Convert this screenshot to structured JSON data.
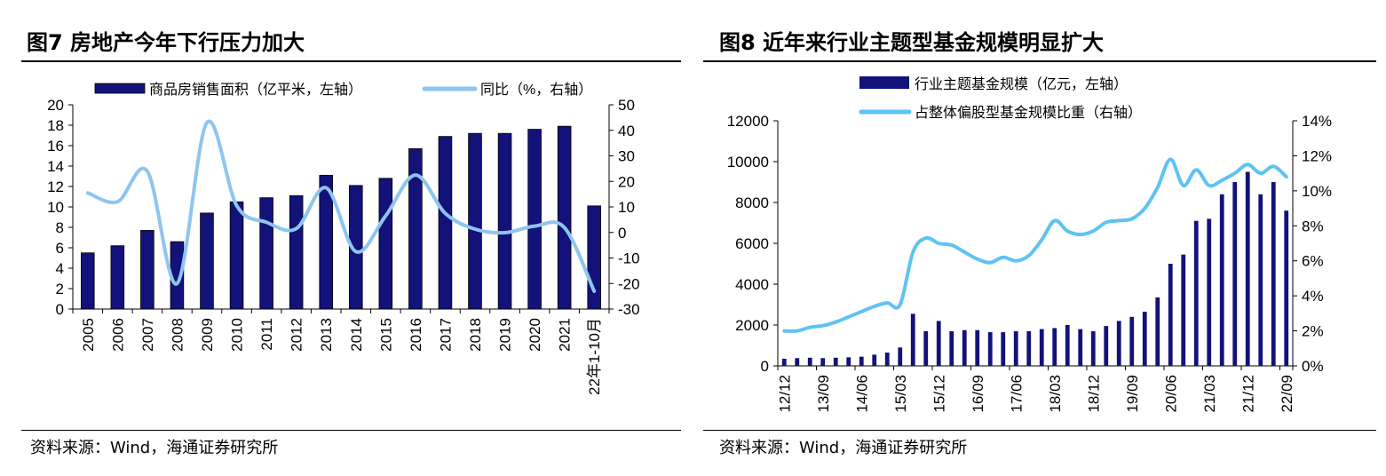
{
  "colors": {
    "bar": "#12127a",
    "line": "#8ec5f0",
    "line2": "#5ec3f2"
  },
  "figure7": {
    "title": "图7   房地产今年下行压力加大",
    "source": "资料来源：Wind，海通证券研究所"
  },
  "figure8": {
    "title": "图8   近年来行业主题型基金规模明显扩大",
    "source": "资料来源：Wind，海通证券研究所"
  },
  "chart_data": [
    {
      "type": "bar+line",
      "categories": [
        "2005",
        "2006",
        "2007",
        "2008",
        "2009",
        "2010",
        "2011",
        "2012",
        "2013",
        "2014",
        "2015",
        "2016",
        "2017",
        "2018",
        "2019",
        "2020",
        "2021",
        "22年1-10月"
      ],
      "series": [
        {
          "name": "商品房销售面积（亿平米，左轴）",
          "type": "bar",
          "axis": "left",
          "values": [
            5.5,
            6.2,
            7.7,
            6.6,
            9.4,
            10.5,
            10.9,
            11.1,
            13.1,
            12.1,
            12.8,
            15.7,
            16.9,
            17.2,
            17.2,
            17.6,
            17.9,
            10.1
          ]
        },
        {
          "name": "同比（%，右轴）",
          "type": "line",
          "axis": "right",
          "values": [
            15.5,
            12,
            24,
            -20,
            43,
            10.5,
            4,
            1.5,
            17.5,
            -7.5,
            6.5,
            22.5,
            7.5,
            1.3,
            -0.1,
            2.5,
            1.9,
            -23
          ]
        }
      ],
      "y_left": {
        "min": 0,
        "max": 20,
        "ticks": [
          "0",
          "2",
          "4",
          "6",
          "8",
          "10",
          "12",
          "14",
          "16",
          "18",
          "20"
        ]
      },
      "y_right": {
        "min": -30,
        "max": 50,
        "ticks": [
          "-30",
          "-20",
          "-10",
          "0",
          "10",
          "20",
          "30",
          "40",
          "50"
        ]
      },
      "legend": "top",
      "grid": false
    },
    {
      "type": "bar+line",
      "x_tick_labels": [
        "12/12",
        "13/09",
        "14/06",
        "15/03",
        "15/12",
        "16/09",
        "17/06",
        "18/03",
        "18/12",
        "19/09",
        "20/06",
        "21/03",
        "21/12",
        "22/09"
      ],
      "quarters": 40,
      "series": [
        {
          "name": "行业主题基金规模（亿元，左轴）",
          "type": "bar",
          "axis": "left",
          "values": [
            350,
            380,
            400,
            380,
            400,
            420,
            450,
            550,
            650,
            900,
            2550,
            1700,
            2200,
            1700,
            1750,
            1750,
            1650,
            1650,
            1700,
            1700,
            1800,
            1850,
            2000,
            1800,
            1700,
            1950,
            2200,
            2400,
            2650,
            3350,
            5000,
            5450,
            7100,
            7200,
            8400,
            9000,
            9500,
            8400,
            9000,
            7600
          ]
        },
        {
          "name": "占整体偏股型基金规模比重（右轴）",
          "type": "line",
          "axis": "right",
          "values": [
            2.0,
            2.0,
            2.2,
            2.3,
            2.5,
            2.8,
            3.1,
            3.4,
            3.6,
            3.5,
            6.5,
            7.3,
            7.0,
            6.9,
            6.5,
            6.1,
            5.9,
            6.2,
            6.0,
            6.3,
            7.2,
            8.3,
            7.7,
            7.5,
            7.7,
            8.2,
            8.3,
            8.4,
            9.0,
            10.2,
            11.8,
            10.3,
            11.2,
            10.3,
            10.6,
            11.0,
            11.5,
            11.0,
            11.4,
            10.8
          ]
        }
      ],
      "y_left": {
        "min": 0,
        "max": 12000,
        "ticks": [
          "0",
          "2000",
          "4000",
          "6000",
          "8000",
          "10000",
          "12000"
        ]
      },
      "y_right": {
        "min": 0,
        "max": 14,
        "ticks": [
          "0%",
          "2%",
          "4%",
          "6%",
          "8%",
          "10%",
          "12%",
          "14%"
        ]
      },
      "legend": "top",
      "grid": false
    }
  ]
}
